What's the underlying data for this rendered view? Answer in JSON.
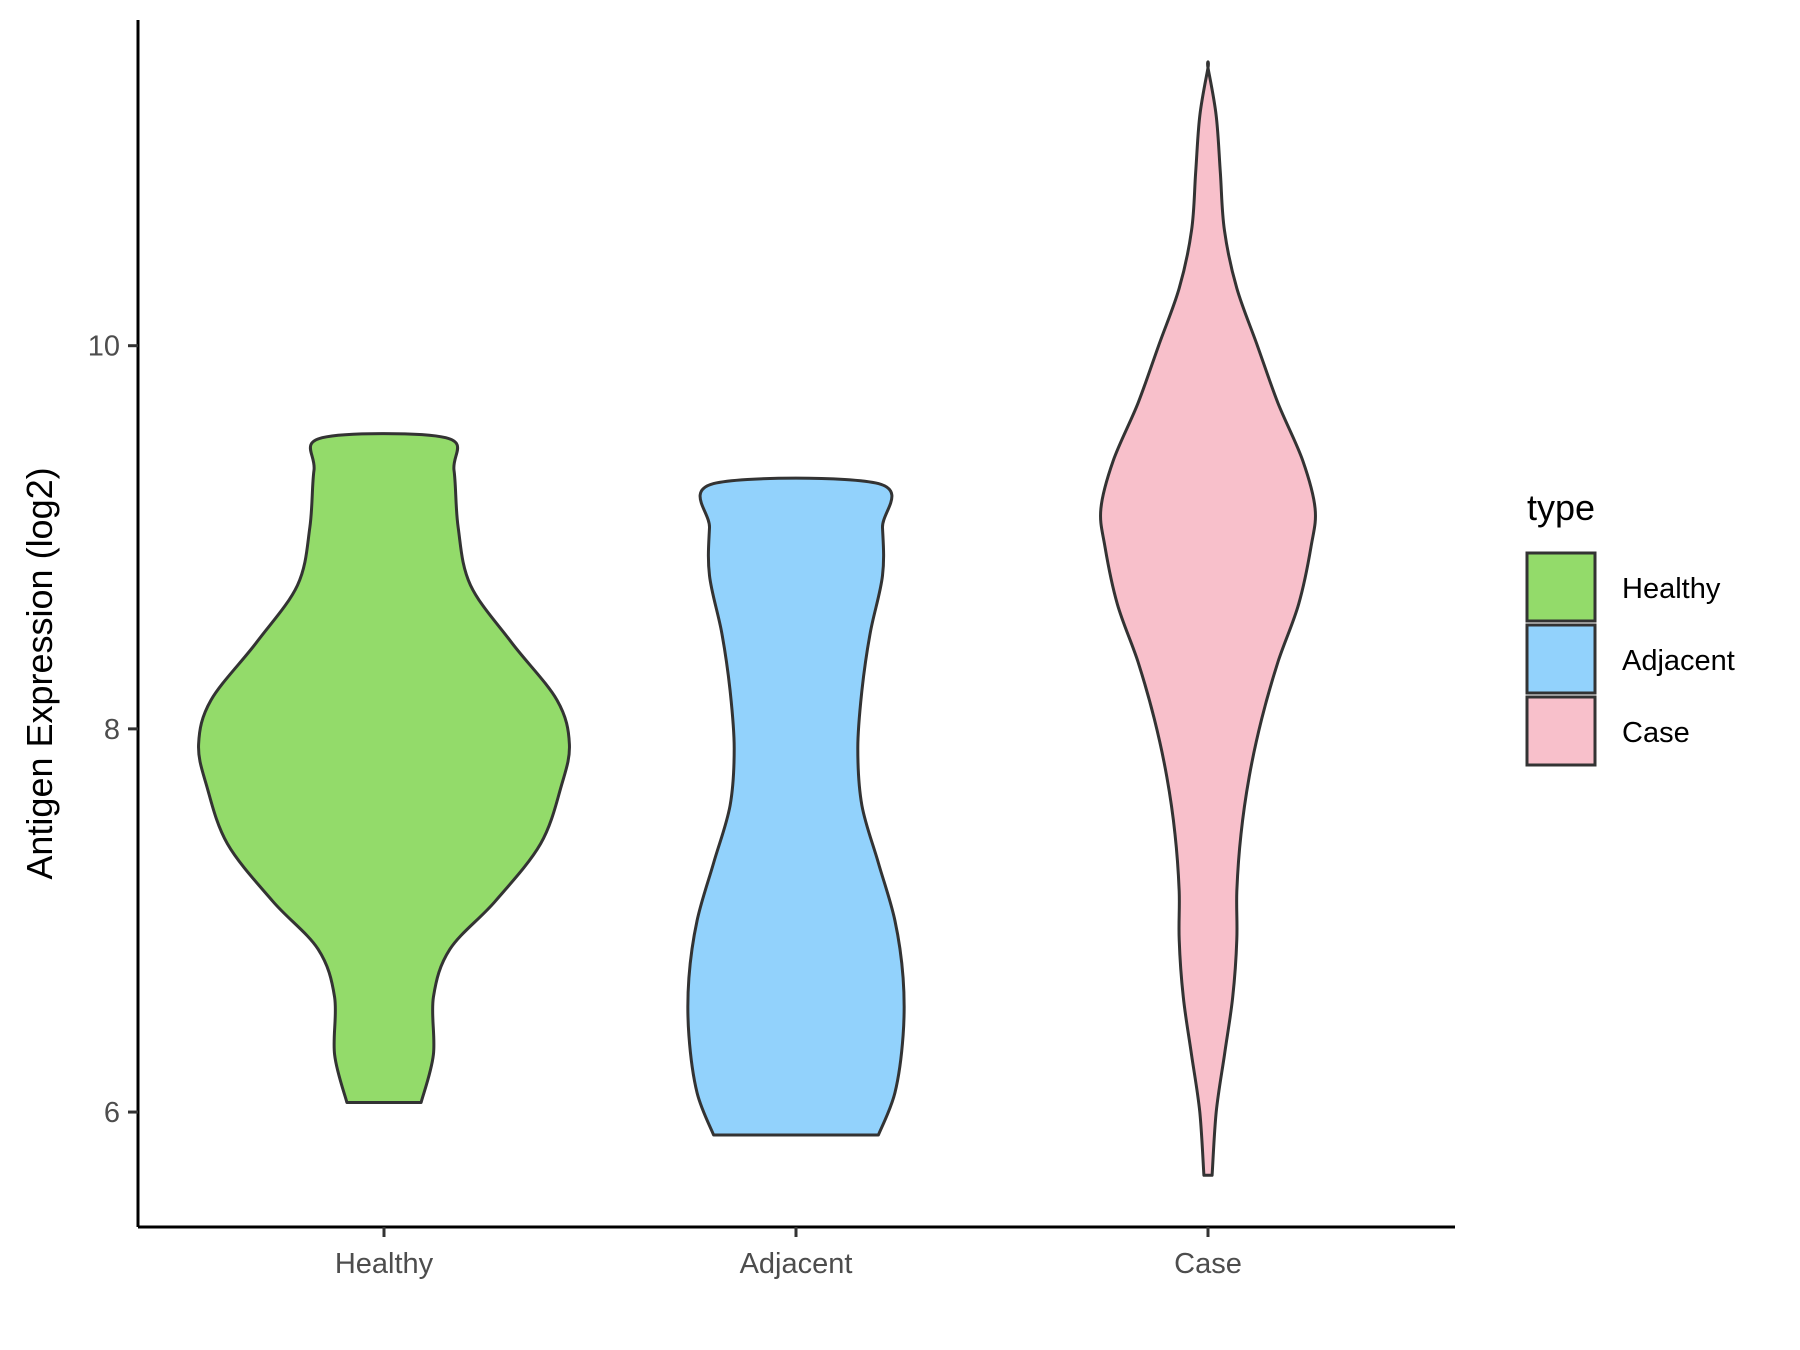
{
  "chart_data": {
    "type": "violin",
    "title": "",
    "xlabel": "",
    "ylabel": "Antigen Expression (log2)",
    "ylim": [
      5.4,
      11.7
    ],
    "yticks": [
      6,
      8,
      10
    ],
    "grid": false,
    "legend": {
      "title": "type",
      "position": "right",
      "entries": [
        "Healthy",
        "Adjacent",
        "Case"
      ]
    },
    "categories": [
      "Healthy",
      "Adjacent",
      "Case"
    ],
    "series": [
      {
        "name": "Healthy",
        "color": "#93DB6A",
        "min": 6.05,
        "max": 9.52,
        "profile": [
          {
            "y": 6.05,
            "hw": 0.09
          },
          {
            "y": 6.3,
            "hw": 0.12
          },
          {
            "y": 6.6,
            "hw": 0.12
          },
          {
            "y": 6.85,
            "hw": 0.16
          },
          {
            "y": 7.1,
            "hw": 0.27
          },
          {
            "y": 7.4,
            "hw": 0.38
          },
          {
            "y": 7.7,
            "hw": 0.43
          },
          {
            "y": 7.92,
            "hw": 0.45
          },
          {
            "y": 8.15,
            "hw": 0.42
          },
          {
            "y": 8.45,
            "hw": 0.31
          },
          {
            "y": 8.75,
            "hw": 0.21
          },
          {
            "y": 9.05,
            "hw": 0.18
          },
          {
            "y": 9.35,
            "hw": 0.17
          },
          {
            "y": 9.52,
            "hw": 0.15
          }
        ]
      },
      {
        "name": "Adjacent",
        "color": "#92D2FC",
        "min": 5.88,
        "max": 9.28,
        "profile": [
          {
            "y": 5.88,
            "hw": 0.2
          },
          {
            "y": 6.1,
            "hw": 0.24
          },
          {
            "y": 6.4,
            "hw": 0.26
          },
          {
            "y": 6.7,
            "hw": 0.26
          },
          {
            "y": 7.0,
            "hw": 0.24
          },
          {
            "y": 7.3,
            "hw": 0.2
          },
          {
            "y": 7.6,
            "hw": 0.16
          },
          {
            "y": 7.9,
            "hw": 0.15
          },
          {
            "y": 8.2,
            "hw": 0.16
          },
          {
            "y": 8.5,
            "hw": 0.18
          },
          {
            "y": 8.8,
            "hw": 0.21
          },
          {
            "y": 9.05,
            "hw": 0.21
          },
          {
            "y": 9.28,
            "hw": 0.2
          }
        ]
      },
      {
        "name": "Case",
        "color": "#F8C0CB",
        "min": 5.67,
        "max": 11.45,
        "profile": [
          {
            "y": 5.67,
            "hw": 0.01
          },
          {
            "y": 6.0,
            "hw": 0.02
          },
          {
            "y": 6.3,
            "hw": 0.04
          },
          {
            "y": 6.6,
            "hw": 0.06
          },
          {
            "y": 6.9,
            "hw": 0.07
          },
          {
            "y": 7.15,
            "hw": 0.07
          },
          {
            "y": 7.45,
            "hw": 0.08
          },
          {
            "y": 7.75,
            "hw": 0.1
          },
          {
            "y": 8.05,
            "hw": 0.13
          },
          {
            "y": 8.35,
            "hw": 0.17
          },
          {
            "y": 8.65,
            "hw": 0.22
          },
          {
            "y": 8.95,
            "hw": 0.25
          },
          {
            "y": 9.15,
            "hw": 0.26
          },
          {
            "y": 9.4,
            "hw": 0.23
          },
          {
            "y": 9.7,
            "hw": 0.17
          },
          {
            "y": 10.0,
            "hw": 0.12
          },
          {
            "y": 10.3,
            "hw": 0.07
          },
          {
            "y": 10.6,
            "hw": 0.04
          },
          {
            "y": 10.9,
            "hw": 0.03
          },
          {
            "y": 11.2,
            "hw": 0.02
          },
          {
            "y": 11.45,
            "hw": 0.0
          }
        ]
      }
    ]
  }
}
